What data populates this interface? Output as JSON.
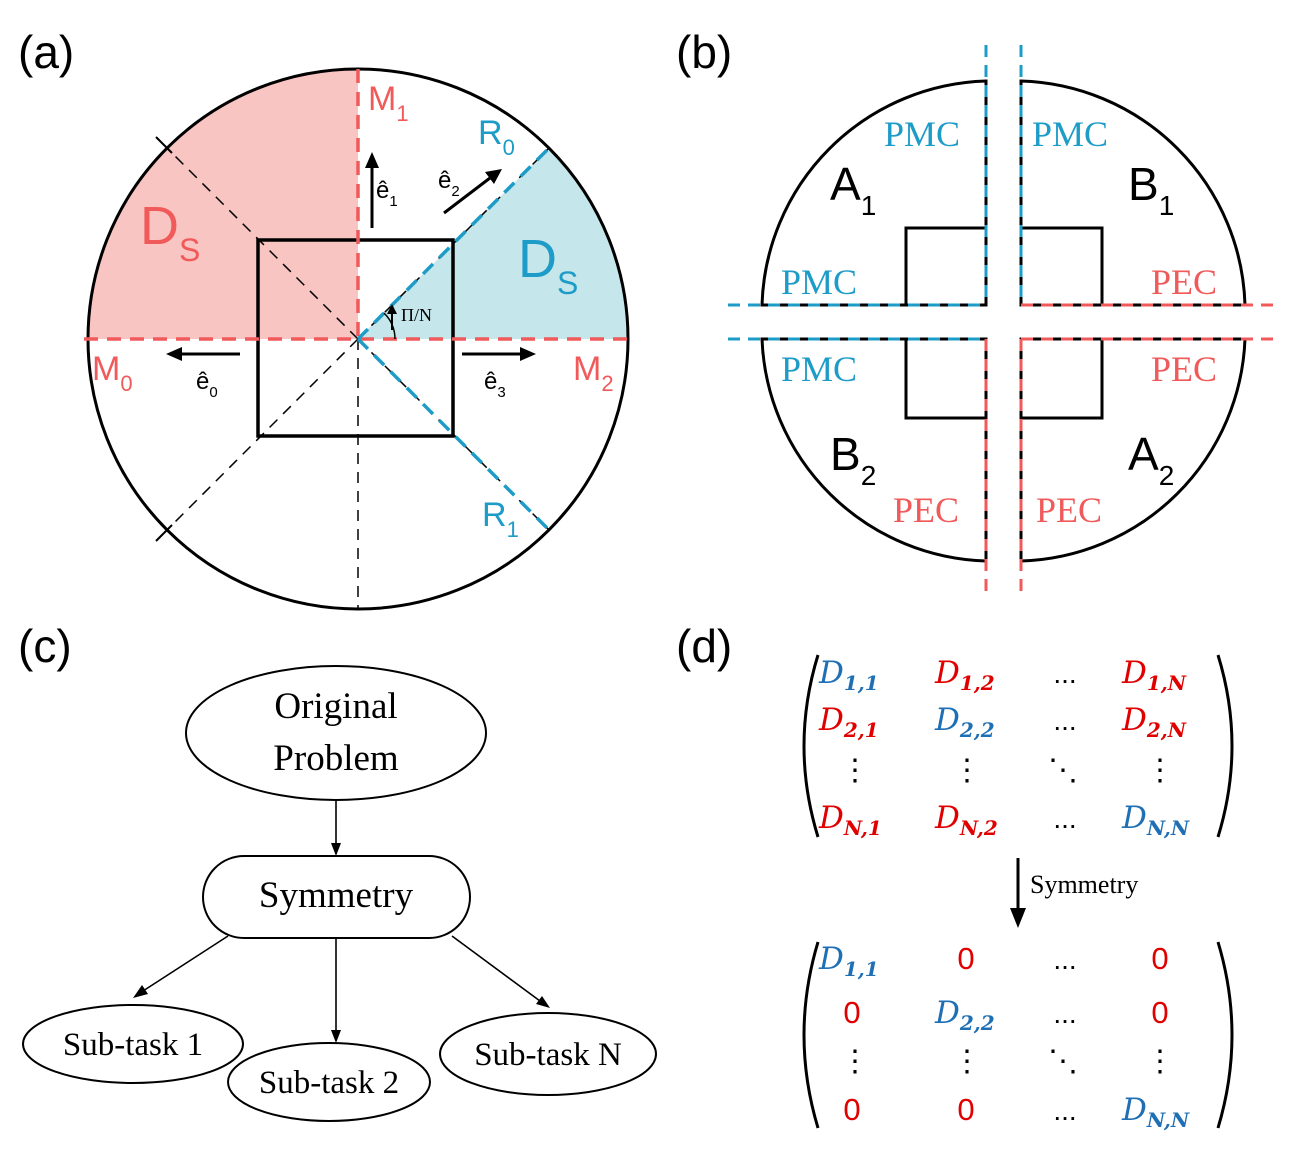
{
  "colors": {
    "red": "#f05a5a",
    "blue": "#1e9cc8",
    "pink_fill": "#f9c5c3",
    "blue_fill": "#c5e6ea",
    "matrix_blue": "#1f6fb4",
    "matrix_red": "#e00000",
    "black": "#000000"
  },
  "panel_a": {
    "label": "(a)",
    "ds_left": "D",
    "ds_left_sub": "S",
    "ds_right": "D",
    "ds_right_sub": "S",
    "m0": "M",
    "m0_sub": "0",
    "m1": "M",
    "m1_sub": "1",
    "m2": "M",
    "m2_sub": "2",
    "r0": "R",
    "r0_sub": "0",
    "r1": "R",
    "r1_sub": "1",
    "e0": "ê",
    "e0_sub": "0",
    "e1": "ê",
    "e1_sub": "1",
    "e2": "ê",
    "e2_sub": "2",
    "e3": "ê",
    "e3_sub": "3",
    "angle": "Π/N"
  },
  "panel_b": {
    "label": "(b)",
    "a1": "A",
    "a1_sub": "1",
    "b1": "B",
    "b1_sub": "1",
    "b2": "B",
    "b2_sub": "2",
    "a2": "A",
    "a2_sub": "2",
    "pmc": "PMC",
    "pec": "PEC"
  },
  "panel_c": {
    "label": "(c)",
    "original_line1": "Original",
    "original_line2": "Problem",
    "symmetry": "Symmetry",
    "subtask1": "Sub-task 1",
    "subtask2": "Sub-task 2",
    "subtaskN": "Sub-task N"
  },
  "panel_d": {
    "label": "(d)",
    "arrow_label": "Symmetry",
    "D": "D",
    "dots": "...",
    "vdots": "⋮",
    "ddots": "⋱",
    "zero": "0",
    "top_subs": [
      "1,1",
      "1,2",
      "1,N",
      "2,1",
      "2,2",
      "2,N",
      "N,1",
      "N,2",
      "N,N"
    ],
    "bottom_subs": [
      "1,1",
      "2,2",
      "N,N"
    ]
  }
}
